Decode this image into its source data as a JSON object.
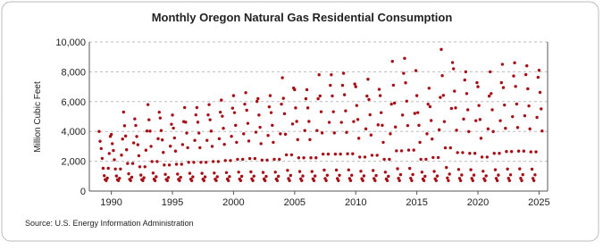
{
  "chart_data": {
    "type": "scatter",
    "title": "Monthly Oregon Natural Gas Residential Consumption",
    "y_label": "Million Cubic Feet",
    "source": "Source: U.S. Energy Information Administration",
    "color": "#a50f15",
    "grid": true,
    "xlim": [
      1988.2,
      2025.7
    ],
    "ylim": [
      0,
      10000
    ],
    "xticks": [
      1990,
      1995,
      2000,
      2005,
      2010,
      2015,
      2020,
      2025
    ],
    "yticks": [
      0,
      {
        "value": 2000,
        "label": "2,000"
      },
      {
        "value": 4000,
        "label": "4,000"
      },
      {
        "value": 6000,
        "label": "6,000"
      },
      {
        "value": 8000,
        "label": "8,000"
      },
      {
        "value": 10000,
        "label": "10,000"
      }
    ],
    "x": [
      1989,
      1989.08,
      1989.17,
      1989.25,
      1989.33,
      1989.42,
      1989.5,
      1989.58,
      1989.67,
      1989.75,
      1989.83,
      1989.92,
      1990,
      1990.08,
      1990.17,
      1990.25,
      1990.33,
      1990.42,
      1990.5,
      1990.58,
      1990.67,
      1990.75,
      1990.83,
      1990.92,
      1991,
      1991.08,
      1991.17,
      1991.25,
      1991.33,
      1991.42,
      1991.5,
      1991.58,
      1991.67,
      1991.75,
      1991.83,
      1991.92,
      1992,
      1992.08,
      1992.17,
      1992.25,
      1992.33,
      1992.42,
      1992.5,
      1992.58,
      1992.67,
      1992.75,
      1992.83,
      1992.92,
      1993,
      1993.08,
      1993.17,
      1993.25,
      1993.33,
      1993.42,
      1993.5,
      1993.58,
      1993.67,
      1993.75,
      1993.83,
      1993.92,
      1994,
      1994.08,
      1994.17,
      1994.25,
      1994.33,
      1994.42,
      1994.5,
      1994.58,
      1994.67,
      1994.75,
      1994.83,
      1994.92,
      1995,
      1995.08,
      1995.17,
      1995.25,
      1995.33,
      1995.42,
      1995.5,
      1995.58,
      1995.67,
      1995.75,
      1995.83,
      1995.92,
      1996,
      1996.08,
      1996.17,
      1996.25,
      1996.33,
      1996.42,
      1996.5,
      1996.58,
      1996.67,
      1996.75,
      1996.83,
      1996.92,
      1997,
      1997.08,
      1997.17,
      1997.25,
      1997.33,
      1997.42,
      1997.5,
      1997.58,
      1997.67,
      1997.75,
      1997.83,
      1997.92,
      1998,
      1998.08,
      1998.17,
      1998.25,
      1998.33,
      1998.42,
      1998.5,
      1998.58,
      1998.67,
      1998.75,
      1998.83,
      1998.92,
      1999,
      1999.08,
      1999.17,
      1999.25,
      1999.33,
      1999.42,
      1999.5,
      1999.58,
      1999.67,
      1999.75,
      1999.83,
      1999.92,
      2000,
      2000.08,
      2000.17,
      2000.25,
      2000.33,
      2000.42,
      2000.5,
      2000.58,
      2000.67,
      2000.75,
      2000.83,
      2000.92,
      2001,
      2001.08,
      2001.17,
      2001.25,
      2001.33,
      2001.42,
      2001.5,
      2001.58,
      2001.67,
      2001.75,
      2001.83,
      2001.92,
      2002,
      2002.08,
      2002.17,
      2002.25,
      2002.33,
      2002.42,
      2002.5,
      2002.58,
      2002.67,
      2002.75,
      2002.83,
      2002.92,
      2003,
      2003.08,
      2003.17,
      2003.25,
      2003.33,
      2003.42,
      2003.5,
      2003.58,
      2003.67,
      2003.75,
      2003.83,
      2003.92,
      2004,
      2004.08,
      2004.17,
      2004.25,
      2004.33,
      2004.42,
      2004.5,
      2004.58,
      2004.67,
      2004.75,
      2004.83,
      2004.92,
      2005,
      2005.08,
      2005.17,
      2005.25,
      2005.33,
      2005.42,
      2005.5,
      2005.58,
      2005.67,
      2005.75,
      2005.83,
      2005.92,
      2006,
      2006.08,
      2006.17,
      2006.25,
      2006.33,
      2006.42,
      2006.5,
      2006.58,
      2006.67,
      2006.75,
      2006.83,
      2006.92,
      2007,
      2007.08,
      2007.17,
      2007.25,
      2007.33,
      2007.42,
      2007.5,
      2007.58,
      2007.67,
      2007.75,
      2007.83,
      2007.92,
      2008,
      2008.08,
      2008.17,
      2008.25,
      2008.33,
      2008.42,
      2008.5,
      2008.58,
      2008.67,
      2008.75,
      2008.83,
      2008.92,
      2009,
      2009.08,
      2009.17,
      2009.25,
      2009.33,
      2009.42,
      2009.5,
      2009.58,
      2009.67,
      2009.75,
      2009.83,
      2009.92,
      2010,
      2010.08,
      2010.17,
      2010.25,
      2010.33,
      2010.42,
      2010.5,
      2010.58,
      2010.67,
      2010.75,
      2010.83,
      2010.92,
      2011,
      2011.08,
      2011.17,
      2011.25,
      2011.33,
      2011.42,
      2011.5,
      2011.58,
      2011.67,
      2011.75,
      2011.83,
      2011.92,
      2012,
      2012.08,
      2012.17,
      2012.25,
      2012.33,
      2012.42,
      2012.5,
      2012.58,
      2012.67,
      2012.75,
      2012.83,
      2012.92,
      2013,
      2013.08,
      2013.17,
      2013.25,
      2013.33,
      2013.42,
      2013.5,
      2013.58,
      2013.67,
      2013.75,
      2013.83,
      2013.92,
      2014,
      2014.08,
      2014.17,
      2014.25,
      2014.33,
      2014.42,
      2014.5,
      2014.58,
      2014.67,
      2014.75,
      2014.83,
      2014.92,
      2015,
      2015.08,
      2015.17,
      2015.25,
      2015.33,
      2015.42,
      2015.5,
      2015.58,
      2015.67,
      2015.75,
      2015.83,
      2015.92,
      2016,
      2016.08,
      2016.17,
      2016.25,
      2016.33,
      2016.42,
      2016.5,
      2016.58,
      2016.67,
      2016.75,
      2016.83,
      2016.92,
      2017,
      2017.08,
      2017.17,
      2017.25,
      2017.33,
      2017.42,
      2017.5,
      2017.58,
      2017.67,
      2017.75,
      2017.83,
      2017.92,
      2018,
      2018.08,
      2018.17,
      2018.25,
      2018.33,
      2018.42,
      2018.5,
      2018.58,
      2018.67,
      2018.75,
      2018.83,
      2018.92,
      2019,
      2019.08,
      2019.17,
      2019.25,
      2019.33,
      2019.42,
      2019.5,
      2019.58,
      2019.67,
      2019.75,
      2019.83,
      2019.92,
      2020,
      2020.08,
      2020.17,
      2020.25,
      2020.33,
      2020.42,
      2020.5,
      2020.58,
      2020.67,
      2020.75,
      2020.83,
      2020.92,
      2021,
      2021.08,
      2021.17,
      2021.25,
      2021.33,
      2021.42,
      2021.5,
      2021.58,
      2021.67,
      2021.75,
      2021.83,
      2021.92,
      2022,
      2022.08,
      2022.17,
      2022.25,
      2022.33,
      2022.42,
      2022.5,
      2022.58,
      2022.67,
      2022.75,
      2022.83,
      2022.92,
      2023,
      2023.08,
      2023.17,
      2023.25,
      2023.33,
      2023.42,
      2023.5,
      2023.58,
      2023.67,
      2023.75,
      2023.83,
      2023.92,
      2024,
      2024.08,
      2024.17,
      2024.25,
      2024.33,
      2024.42,
      2024.5,
      2024.58,
      2024.67,
      2024.75,
      2024.83,
      2024.92,
      2025,
      2025.08,
      2025.17,
      2025.25
    ],
    "values": [
      4000,
      3340,
      2850,
      2190,
      1530,
      1030,
      770,
      700,
      870,
      1530,
      2520,
      3670,
      3800,
      3180,
      2720,
      2100,
      1480,
      1010,
      760,
      700,
      860,
      1480,
      2410,
      3490,
      5300,
      4380,
      3690,
      2770,
      1850,
      1160,
      790,
      700,
      930,
      1850,
      3230,
      4840,
      4400,
      3660,
      3110,
      2370,
      1630,
      1070,
      770,
      700,
      890,
      1630,
      2740,
      4030,
      5800,
      4780,
      4020,
      3000,
      1980,
      1210,
      800,
      700,
      960,
      1980,
      3510,
      5290,
      4900,
      4060,
      3430,
      2590,
      1750,
      1120,
      780,
      700,
      910,
      1750,
      3010,
      4480,
      5100,
      4220,
      3560,
      2680,
      1800,
      1140,
      790,
      700,
      920,
      1800,
      3120,
      4660,
      5600,
      4620,
      3890,
      2910,
      1930,
      1190,
      800,
      700,
      950,
      1930,
      3400,
      5110,
      5600,
      4620,
      3890,
      2910,
      1930,
      1190,
      800,
      700,
      950,
      1930,
      3400,
      5110,
      5800,
      4780,
      4020,
      3000,
      1980,
      1210,
      800,
      700,
      960,
      1980,
      3510,
      5290,
      6100,
      5020,
      4210,
      3130,
      2050,
      1240,
      810,
      700,
      970,
      2050,
      3670,
      5560,
      6400,
      5260,
      4410,
      3270,
      2130,
      1270,
      810,
      700,
      990,
      2130,
      3840,
      5830,
      6600,
      5420,
      4540,
      3360,
      2180,
      1290,
      820,
      700,
      1000,
      2180,
      3950,
      6010,
      6200,
      5100,
      4280,
      3180,
      2080,
      1250,
      810,
      700,
      980,
      2080,
      3730,
      5650,
      6400,
      5260,
      4410,
      3270,
      2130,
      1270,
      810,
      700,
      990,
      2130,
      3840,
      5830,
      7600,
      6220,
      5190,
      3810,
      2430,
      1390,
      840,
      700,
      1050,
      2430,
      4500,
      6910,
      6800,
      5580,
      4670,
      3450,
      2230,
      1310,
      820,
      700,
      1010,
      2230,
      4060,
      6190,
      6800,
      5580,
      4670,
      3450,
      2230,
      1310,
      820,
      700,
      1010,
      2230,
      4060,
      6190,
      7800,
      6380,
      5320,
      3900,
      2480,
      1410,
      840,
      700,
      1060,
      2480,
      4610,
      7090,
      7800,
      6380,
      5320,
      3900,
      2480,
      1410,
      840,
      700,
      1060,
      2480,
      4610,
      7090,
      7900,
      6460,
      5380,
      3940,
      2500,
      1420,
      840,
      700,
      1060,
      2500,
      4660,
      7180,
      7000,
      5740,
      4800,
      3540,
      2280,
      1330,
      830,
      700,
      1020,
      2280,
      4170,
      6370,
      7500,
      6140,
      5120,
      3760,
      2400,
      1380,
      840,
      700,
      1040,
      2400,
      4440,
      6820,
      6400,
      5260,
      4410,
      3270,
      2130,
      1270,
      810,
      700,
      990,
      2130,
      3840,
      5830,
      8700,
      7100,
      5900,
      4300,
      2700,
      1500,
      860,
      700,
      1100,
      2700,
      5100,
      7900,
      8900,
      7260,
      6030,
      4390,
      2750,
      1520,
      860,
      700,
      1110,
      2750,
      5210,
      8080,
      6400,
      5260,
      4410,
      3270,
      2130,
      1270,
      810,
      700,
      990,
      2130,
      3840,
      5830,
      6900,
      5660,
      4730,
      3490,
      2250,
      1320,
      820,
      700,
      1010,
      2250,
      4110,
      6280,
      9500,
      7740,
      6420,
      4660,
      2900,
      1580,
      880,
      700,
      1140,
      2900,
      5540,
      8620,
      8200,
      6700,
      5580,
      4080,
      2580,
      1450,
      850,
      700,
      1080,
      2580,
      4830,
      7450,
      8000,
      6540,
      5450,
      3990,
      2530,
      1430,
      850,
      700,
      1070,
      2530,
      4720,
      7270,
      7000,
      5740,
      4800,
      3540,
      2280,
      1330,
      830,
      700,
      1020,
      2280,
      4170,
      6370,
      8000,
      6540,
      5450,
      3990,
      2530,
      1430,
      850,
      700,
      1070,
      2530,
      4720,
      7270,
      8500,
      6940,
      5770,
      4210,
      2650,
      1480,
      860,
      700,
      1090,
      2650,
      4990,
      7720,
      8600,
      7020,
      5840,
      4260,
      2680,
      1490,
      860,
      700,
      1100,
      2680,
      5050,
      7810,
      8400,
      6860,
      5710,
      4170,
      2630,
      1470,
      850,
      700,
      1090,
      2630,
      4940,
      7630,
      8100,
      6620,
      5510,
      4030
    ]
  }
}
